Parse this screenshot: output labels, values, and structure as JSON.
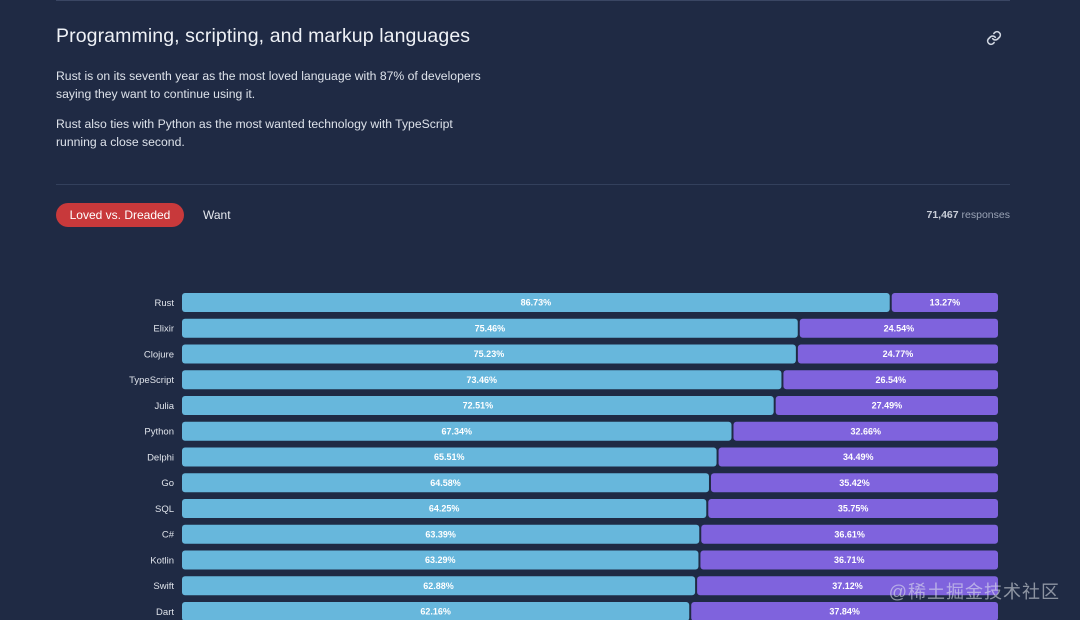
{
  "section": {
    "title": "Programming, scripting, and markup languages",
    "paragraphs": [
      "Rust is on its seventh year as the most loved language with 87% of developers saying they want to continue using it.",
      "Rust also ties with Python as the most wanted technology with TypeScript running a close second."
    ]
  },
  "tabs": {
    "active_label": "Loved vs. Dreaded",
    "inactive_label": "Want"
  },
  "responses": {
    "count": "71,467",
    "label": "responses"
  },
  "watermark": "@稀土掘金技术社区",
  "colors": {
    "background": "#1f2a44",
    "loved": "#67b7dc",
    "dreaded": "#7f63dd",
    "active_tab": "#c8393b"
  },
  "icons": {
    "link": "link-icon"
  },
  "chart_data": {
    "type": "bar",
    "orientation": "horizontal",
    "stacked": true,
    "xlim": [
      0,
      100
    ],
    "categories": [
      "Rust",
      "Elixir",
      "Clojure",
      "TypeScript",
      "Julia",
      "Python",
      "Delphi",
      "Go",
      "SQL",
      "C#",
      "Kotlin",
      "Swift",
      "Dart"
    ],
    "series": [
      {
        "values": [
          86.73,
          75.46,
          75.23,
          73.46,
          72.51,
          67.34,
          65.51,
          64.58,
          64.25,
          63.39,
          63.29,
          62.88,
          62.16
        ],
        "labels": [
          "86.73%",
          "75.46%",
          "75.23%",
          "73.46%",
          "72.51%",
          "67.34%",
          "65.51%",
          "64.58%",
          "64.25%",
          "63.39%",
          "63.29%",
          "62.88%",
          "62.16%"
        ]
      },
      {
        "values": [
          13.27,
          24.54,
          24.77,
          26.54,
          27.49,
          32.66,
          34.49,
          35.42,
          35.75,
          36.61,
          36.71,
          37.12,
          37.84
        ],
        "labels": [
          "13.27%",
          "24.54%",
          "24.77%",
          "26.54%",
          "27.49%",
          "32.66%",
          "34.49%",
          "35.42%",
          "35.75%",
          "36.61%",
          "36.71%",
          "37.12%",
          "37.84%"
        ]
      }
    ]
  }
}
